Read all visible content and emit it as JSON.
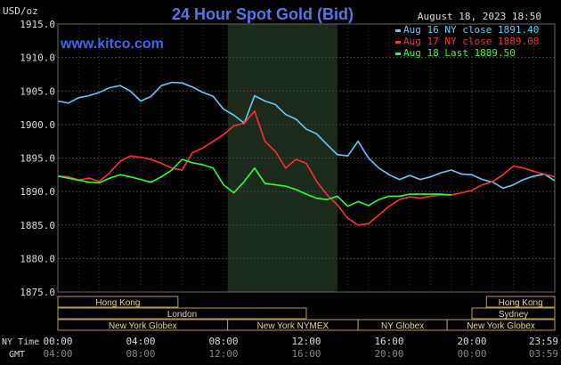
{
  "chart_data": {
    "type": "line",
    "title": "24 Hour Spot Gold (Bid)",
    "unit_label": "USD/oz",
    "timestamp": "August 18, 2023 18:50",
    "watermark": "www.kitco.com",
    "ylim": [
      1875.0,
      1915.0
    ],
    "ytick_labels": [
      "1915.0",
      "1910.0",
      "1905.0",
      "1900.0",
      "1895.0",
      "1890.0",
      "1885.0",
      "1880.0",
      "1875.0"
    ],
    "ytick_values": [
      1915,
      1910,
      1905,
      1900,
      1895,
      1890,
      1885,
      1880,
      1875
    ],
    "xlim_hours": [
      0,
      24
    ],
    "ny_time_label": "NY Time",
    "gmt_label": "GMT",
    "ny_time_ticks": [
      "00:00",
      "04:00",
      "08:00",
      "12:00",
      "16:00",
      "20:00",
      "23:59"
    ],
    "gmt_ticks": [
      "04:00",
      "08:00",
      "12:00",
      "16:00",
      "20:00",
      "00:00",
      "03:59"
    ],
    "tick_hours": [
      0,
      4,
      8,
      12,
      16,
      20,
      24
    ],
    "shaded_range_hours": [
      8.2,
      13.5
    ],
    "grid": true,
    "legend_position": "top-right",
    "legend": [
      {
        "label": "Aug 16 NY close 1891.40",
        "color": "#66ccff"
      },
      {
        "label": "Aug 17 NY close 1889.00",
        "color": "#ff3030"
      },
      {
        "label": "Aug 18 Last 1889.50",
        "color": "#30ff30"
      }
    ],
    "sessions": [
      {
        "label": "Hong Kong",
        "start_hours": 0,
        "end_hours": 5.8,
        "row": 0
      },
      {
        "label": "London",
        "start_hours": 0,
        "end_hours": 12.0,
        "row": 1
      },
      {
        "label": "New York Globex",
        "start_hours": 0,
        "end_hours": 8.2,
        "row": 2
      },
      {
        "label": "New York NYMEX",
        "start_hours": 8.2,
        "end_hours": 14.5,
        "row": 2
      },
      {
        "label": "NY Globex",
        "start_hours": 14.5,
        "end_hours": 18.8,
        "row": 2
      },
      {
        "label": "Hong Kong",
        "start_hours": 20.7,
        "end_hours": 24,
        "row": 0
      },
      {
        "label": "Sydney",
        "start_hours": 20.0,
        "end_hours": 24,
        "row": 1
      },
      {
        "label": "New York Globex",
        "start_hours": 18.8,
        "end_hours": 24,
        "row": 2
      }
    ],
    "series": [
      {
        "name": "Aug 16 NY close 1891.40",
        "color": "#66ccff",
        "x": [
          0,
          0.5,
          1,
          1.5,
          2,
          2.5,
          3,
          3.5,
          4,
          4.5,
          5,
          5.5,
          6,
          6.5,
          7,
          7.5,
          8,
          8.5,
          9,
          9.5,
          10,
          10.5,
          11,
          11.5,
          12,
          12.5,
          13,
          13.5,
          14,
          14.5,
          15,
          15.5,
          16,
          16.5,
          17,
          17.5,
          18,
          18.5,
          19,
          19.5,
          20,
          20.5,
          21,
          21.5,
          22,
          22.5,
          23,
          23.5,
          24
        ],
        "values": [
          1903.5,
          1903.2,
          1904.0,
          1904.3,
          1904.8,
          1905.5,
          1905.8,
          1905.0,
          1903.5,
          1904.2,
          1905.8,
          1906.3,
          1906.2,
          1905.6,
          1904.8,
          1904.2,
          1902.3,
          1901.4,
          1900.2,
          1904.3,
          1903.5,
          1903.0,
          1901.5,
          1900.8,
          1899.3,
          1898.6,
          1897.0,
          1895.5,
          1895.3,
          1897.5,
          1895.0,
          1893.5,
          1892.5,
          1891.8,
          1892.4,
          1891.8,
          1892.2,
          1892.8,
          1893.2,
          1892.6,
          1892.5,
          1891.8,
          1891.4,
          1890.5,
          1891.0,
          1891.8,
          1892.3,
          1892.6,
          1891.6
        ]
      },
      {
        "name": "Aug 17 NY close 1889.00",
        "color": "#ff3030",
        "x": [
          0,
          0.5,
          1,
          1.5,
          2,
          2.5,
          3,
          3.5,
          4,
          4.5,
          5,
          5.5,
          6,
          6.5,
          7,
          7.5,
          8,
          8.5,
          9,
          9.5,
          10,
          10.5,
          11,
          11.5,
          12,
          12.5,
          13,
          13.5,
          14,
          14.5,
          15,
          15.5,
          16,
          16.5,
          17,
          17.5,
          18,
          18.5,
          19,
          19.5,
          20,
          20.5,
          21,
          21.5,
          22,
          22.5,
          23,
          23.5,
          24
        ],
        "values": [
          1892.3,
          1892.2,
          1891.7,
          1892.0,
          1891.5,
          1892.8,
          1894.5,
          1895.3,
          1895.1,
          1894.8,
          1894.2,
          1893.5,
          1893.2,
          1895.8,
          1896.5,
          1897.5,
          1898.5,
          1899.8,
          1900.2,
          1902.0,
          1897.5,
          1896.0,
          1893.5,
          1894.8,
          1894.2,
          1891.5,
          1889.5,
          1888.0,
          1886.0,
          1885.0,
          1885.2,
          1886.5,
          1887.8,
          1888.8,
          1889.2,
          1889.0,
          1889.3,
          1889.5,
          1889.5,
          1889.8,
          1890.2,
          1891.0,
          1891.5,
          1892.5,
          1893.8,
          1893.5,
          1893.0,
          1892.6,
          1892.2
        ]
      },
      {
        "name": "Aug 18 Last 1889.50",
        "color": "#30ff30",
        "x": [
          0,
          0.5,
          1,
          1.5,
          2,
          2.5,
          3,
          3.5,
          4,
          4.5,
          5,
          5.5,
          6,
          6.5,
          7,
          7.5,
          8,
          8.5,
          9,
          9.5,
          10,
          10.5,
          11,
          11.5,
          12,
          12.5,
          13,
          13.5,
          14,
          14.5,
          15,
          15.5,
          16,
          16.5,
          17,
          17.5,
          18,
          18.5,
          19
        ],
        "values": [
          1892.3,
          1892.0,
          1891.7,
          1891.4,
          1891.3,
          1892.0,
          1892.5,
          1892.2,
          1891.8,
          1891.4,
          1892.2,
          1893.2,
          1894.8,
          1894.3,
          1894.0,
          1893.5,
          1891.0,
          1889.8,
          1891.5,
          1893.5,
          1891.2,
          1891.0,
          1890.8,
          1890.3,
          1889.6,
          1889.0,
          1888.8,
          1889.3,
          1887.8,
          1888.5,
          1887.9,
          1888.8,
          1889.3,
          1889.3,
          1889.6,
          1889.6,
          1889.6,
          1889.6,
          1889.5
        ]
      }
    ]
  }
}
